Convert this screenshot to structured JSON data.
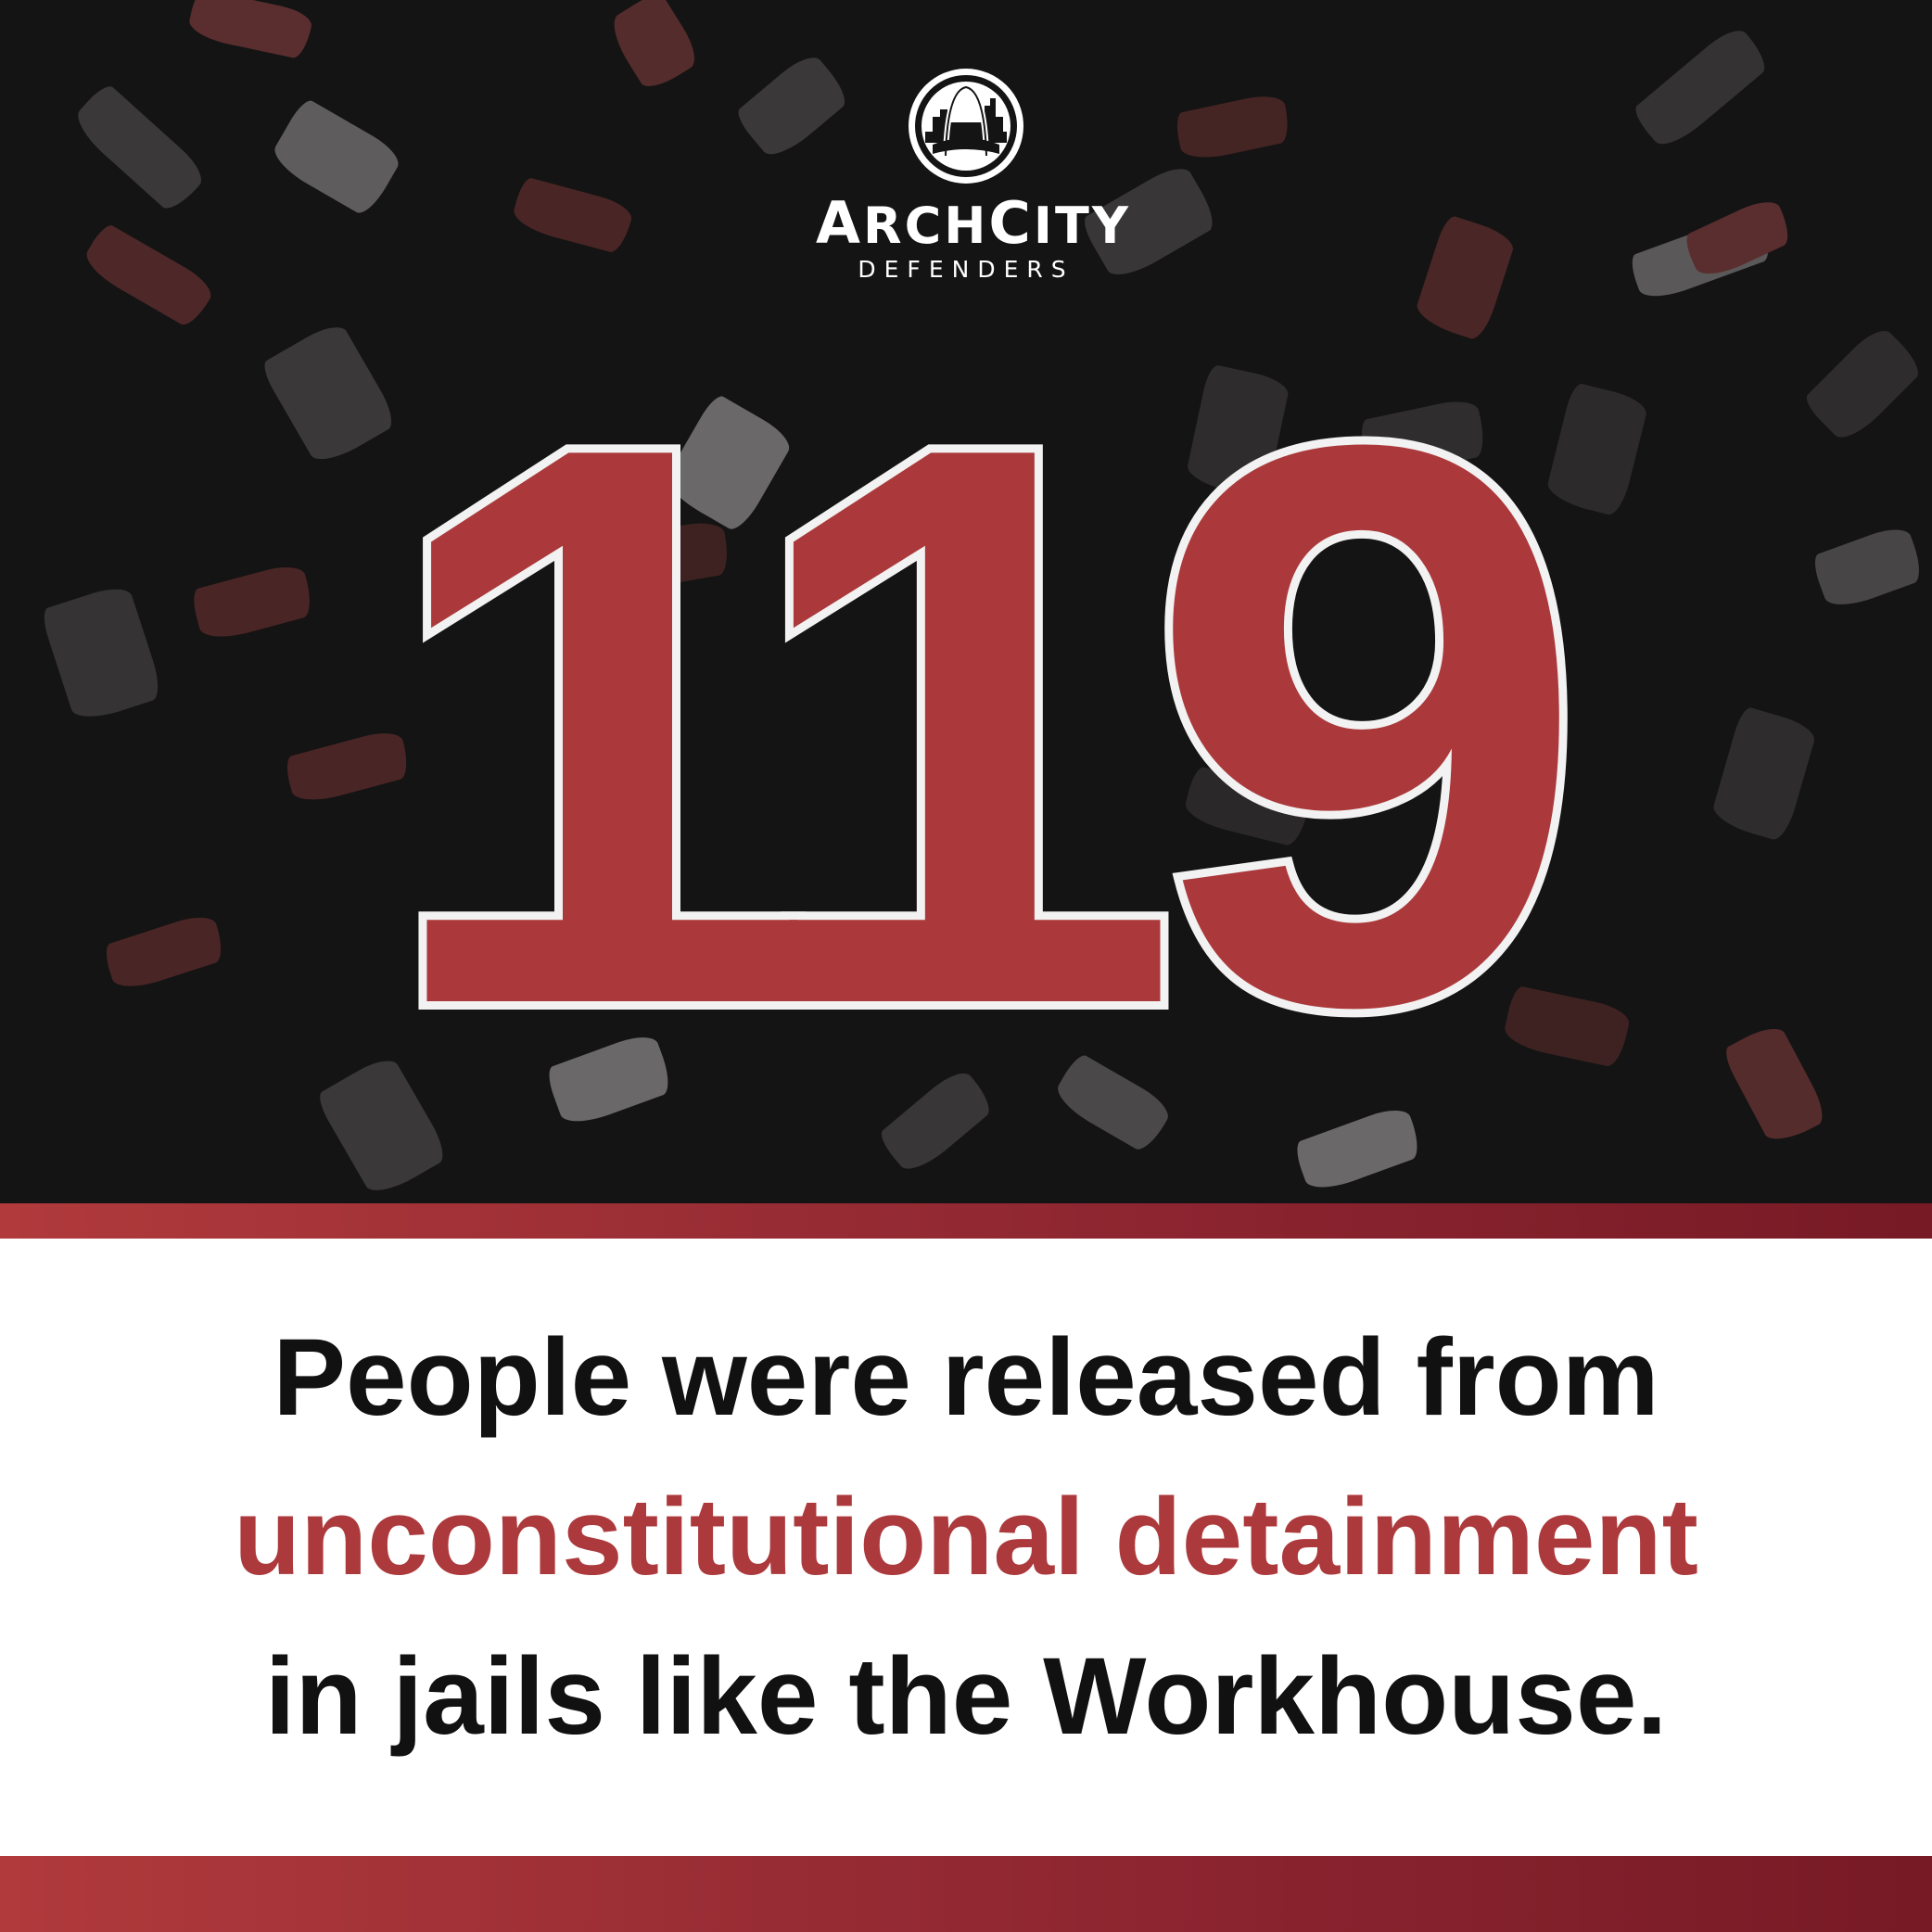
{
  "logo": {
    "name_part1_cap": "A",
    "name_part1_rest": "RCH",
    "name_part2_cap": "C",
    "name_part2_rest": "ITY",
    "subtitle": "DEFENDERS"
  },
  "headline_number": "119",
  "caption": {
    "line1": "People were released from",
    "line2": "unconstitutional detainment",
    "line3": "in jails like the Workhouse."
  },
  "colors": {
    "background_dark": "#141414",
    "accent_red": "#ac393c",
    "number_fill": "#ab393b",
    "number_outline": "#f2f2f2",
    "text_dark": "#111111"
  }
}
